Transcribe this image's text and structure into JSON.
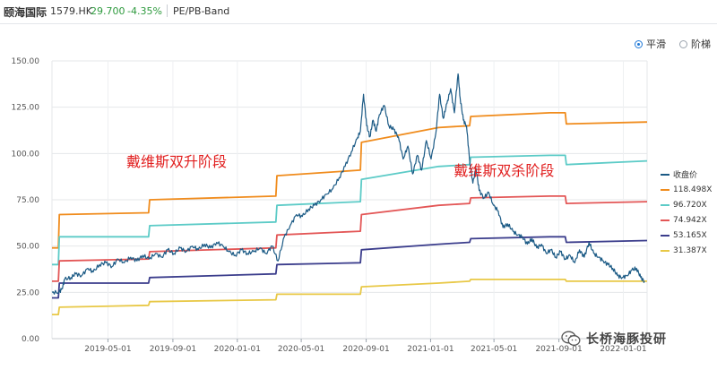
{
  "header": {
    "stock_name": "颐海国际",
    "stock_code": "1579.HK",
    "price": "29.700",
    "change": "-4.35%",
    "tab": "PE/PB-Band",
    "options": [
      {
        "label": "平滑",
        "selected": true
      },
      {
        "label": "阶梯",
        "selected": false
      }
    ]
  },
  "colors": {
    "price": "#1b5a85",
    "band1": "#f08c1d",
    "band2": "#5ccbc7",
    "band3": "#e35656",
    "band4": "#3b3d8c",
    "band5": "#e8c846",
    "annotation": "#e11f1f",
    "positive": "#2e9a3e"
  },
  "watermark": {
    "icon": "wechat-icon",
    "text": "长桥海豚投研"
  },
  "chart_data": {
    "type": "line",
    "title": "",
    "xlabel": "",
    "ylabel": "",
    "ylim": [
      0,
      150
    ],
    "y_ticks": [
      "0.00",
      "25.00",
      "50.00",
      "75.00",
      "100.00",
      "125.00",
      "150.00"
    ],
    "x_range": [
      "2019-01-15",
      "2022-02-15"
    ],
    "x_ticks": [
      "2019-05-01",
      "2019-09-01",
      "2020-01-01",
      "2020-05-01",
      "2020-09-01",
      "2021-01-01",
      "2021-05-01",
      "2021-09-01",
      "2022-01-01"
    ],
    "grid": true,
    "legend_position": "right",
    "annotations": [
      {
        "text": "戴维斯双升阶段",
        "x": "2019-09-08",
        "y": 93
      },
      {
        "text": "戴维斯双杀阶段",
        "x": "2021-05-20",
        "y": 88
      }
    ],
    "series": [
      {
        "name": "收盘价",
        "color_key": "price",
        "smooth": false,
        "points": [
          [
            "2019-01-15",
            25
          ],
          [
            "2019-01-28",
            25
          ],
          [
            "2019-02-03",
            27
          ],
          [
            "2019-02-08",
            32
          ],
          [
            "2019-02-20",
            33
          ],
          [
            "2019-03-01",
            35
          ],
          [
            "2019-03-12",
            34
          ],
          [
            "2019-03-24",
            38
          ],
          [
            "2019-04-03",
            36
          ],
          [
            "2019-04-15",
            40
          ],
          [
            "2019-04-27",
            41
          ],
          [
            "2019-05-09",
            39
          ],
          [
            "2019-05-20",
            43
          ],
          [
            "2019-06-01",
            41
          ],
          [
            "2019-06-13",
            44
          ],
          [
            "2019-06-25",
            42
          ],
          [
            "2019-07-06",
            45
          ],
          [
            "2019-07-18",
            43
          ],
          [
            "2019-07-30",
            46
          ],
          [
            "2019-08-11",
            44
          ],
          [
            "2019-08-22",
            48
          ],
          [
            "2019-09-03",
            46
          ],
          [
            "2019-09-15",
            49
          ],
          [
            "2019-09-26",
            47
          ],
          [
            "2019-10-08",
            50
          ],
          [
            "2019-10-19",
            48
          ],
          [
            "2019-10-31",
            51
          ],
          [
            "2019-11-11",
            49
          ],
          [
            "2019-11-23",
            52
          ],
          [
            "2019-12-05",
            50
          ],
          [
            "2019-12-16",
            47
          ],
          [
            "2019-12-28",
            45
          ],
          [
            "2020-01-09",
            48
          ],
          [
            "2020-01-20",
            46
          ],
          [
            "2020-02-01",
            47
          ],
          [
            "2020-02-13",
            49
          ],
          [
            "2020-02-24",
            46
          ],
          [
            "2020-03-07",
            50
          ],
          [
            "2020-03-18",
            42
          ],
          [
            "2020-03-30",
            55
          ],
          [
            "2020-04-10",
            61
          ],
          [
            "2020-04-22",
            67
          ],
          [
            "2020-05-03",
            66
          ],
          [
            "2020-05-15",
            70
          ],
          [
            "2020-05-26",
            72
          ],
          [
            "2020-06-07",
            75
          ],
          [
            "2020-06-18",
            78
          ],
          [
            "2020-06-30",
            81
          ],
          [
            "2020-07-12",
            87
          ],
          [
            "2020-07-23",
            93
          ],
          [
            "2020-08-04",
            101
          ],
          [
            "2020-08-15",
            108
          ],
          [
            "2020-08-21",
            112
          ],
          [
            "2020-08-27",
            132
          ],
          [
            "2020-09-02",
            115
          ],
          [
            "2020-09-08",
            109
          ],
          [
            "2020-09-14",
            118
          ],
          [
            "2020-09-20",
            112
          ],
          [
            "2020-09-26",
            121
          ],
          [
            "2020-10-05",
            126
          ],
          [
            "2020-10-14",
            115
          ],
          [
            "2020-10-23",
            113
          ],
          [
            "2020-11-01",
            109
          ],
          [
            "2020-11-10",
            97
          ],
          [
            "2020-11-19",
            104
          ],
          [
            "2020-11-28",
            89
          ],
          [
            "2020-12-07",
            99
          ],
          [
            "2020-12-15",
            91
          ],
          [
            "2020-12-24",
            107
          ],
          [
            "2021-01-02",
            97
          ],
          [
            "2021-01-11",
            111
          ],
          [
            "2021-01-18",
            132
          ],
          [
            "2021-01-25",
            119
          ],
          [
            "2021-02-01",
            127
          ],
          [
            "2021-02-08",
            135
          ],
          [
            "2021-02-15",
            122
          ],
          [
            "2021-02-22",
            143
          ],
          [
            "2021-02-26",
            130
          ],
          [
            "2021-03-04",
            118
          ],
          [
            "2021-03-10",
            115
          ],
          [
            "2021-03-16",
            96
          ],
          [
            "2021-03-22",
            84
          ],
          [
            "2021-03-28",
            92
          ],
          [
            "2021-04-03",
            80
          ],
          [
            "2021-04-12",
            76
          ],
          [
            "2021-04-21",
            79
          ],
          [
            "2021-04-30",
            72
          ],
          [
            "2021-05-09",
            69
          ],
          [
            "2021-05-18",
            60
          ],
          [
            "2021-05-27",
            62
          ],
          [
            "2021-06-06",
            58
          ],
          [
            "2021-06-15",
            56
          ],
          [
            "2021-06-24",
            55
          ],
          [
            "2021-07-03",
            51
          ],
          [
            "2021-07-12",
            54
          ],
          [
            "2021-07-21",
            49
          ],
          [
            "2021-07-30",
            51
          ],
          [
            "2021-08-08",
            46
          ],
          [
            "2021-08-17",
            48
          ],
          [
            "2021-08-26",
            44
          ],
          [
            "2021-09-04",
            47
          ],
          [
            "2021-09-13",
            43
          ],
          [
            "2021-09-22",
            45
          ],
          [
            "2021-10-01",
            41
          ],
          [
            "2021-10-10",
            48
          ],
          [
            "2021-10-19",
            44
          ],
          [
            "2021-10-28",
            52
          ],
          [
            "2021-11-06",
            46
          ],
          [
            "2021-11-15",
            44
          ],
          [
            "2021-11-24",
            42
          ],
          [
            "2021-12-03",
            40
          ],
          [
            "2021-12-12",
            38
          ],
          [
            "2021-12-21",
            34
          ],
          [
            "2021-12-30",
            33
          ],
          [
            "2022-01-08",
            34
          ],
          [
            "2022-01-17",
            37
          ],
          [
            "2022-01-26",
            38
          ],
          [
            "2022-02-03",
            33
          ],
          [
            "2022-02-10",
            31
          ]
        ]
      },
      {
        "name": "118.498X",
        "color_key": "band1",
        "smooth": true,
        "points": [
          [
            "2019-01-15",
            49
          ],
          [
            "2019-01-27",
            49
          ],
          [
            "2019-01-29",
            67
          ],
          [
            "2019-07-17",
            68
          ],
          [
            "2019-07-19",
            75
          ],
          [
            "2020-03-14",
            77
          ],
          [
            "2020-03-16",
            88
          ],
          [
            "2020-08-21",
            91
          ],
          [
            "2020-08-23",
            106
          ],
          [
            "2021-01-16",
            114
          ],
          [
            "2021-03-16",
            115
          ],
          [
            "2021-03-18",
            120
          ],
          [
            "2021-08-15",
            122
          ],
          [
            "2021-09-13",
            122
          ],
          [
            "2021-09-15",
            116
          ],
          [
            "2022-02-15",
            117
          ]
        ]
      },
      {
        "name": "96.720X",
        "color_key": "band2",
        "smooth": true,
        "points": [
          [
            "2019-01-15",
            40
          ],
          [
            "2019-01-27",
            40
          ],
          [
            "2019-01-29",
            55
          ],
          [
            "2019-07-17",
            55
          ],
          [
            "2019-07-19",
            61
          ],
          [
            "2020-03-14",
            63
          ],
          [
            "2020-03-16",
            72
          ],
          [
            "2020-08-21",
            74
          ],
          [
            "2020-08-23",
            86
          ],
          [
            "2021-01-16",
            93
          ],
          [
            "2021-03-16",
            94
          ],
          [
            "2021-03-18",
            98
          ],
          [
            "2021-08-15",
            99
          ],
          [
            "2021-09-13",
            99
          ],
          [
            "2021-09-15",
            94
          ],
          [
            "2022-02-15",
            96
          ]
        ]
      },
      {
        "name": "74.942X",
        "color_key": "band3",
        "smooth": true,
        "points": [
          [
            "2019-01-15",
            31
          ],
          [
            "2019-01-27",
            31
          ],
          [
            "2019-01-29",
            42
          ],
          [
            "2019-07-17",
            43
          ],
          [
            "2019-07-19",
            47
          ],
          [
            "2020-03-14",
            49
          ],
          [
            "2020-03-16",
            56
          ],
          [
            "2020-08-21",
            58
          ],
          [
            "2020-08-23",
            67
          ],
          [
            "2021-01-16",
            72
          ],
          [
            "2021-03-16",
            73
          ],
          [
            "2021-03-18",
            76
          ],
          [
            "2021-08-15",
            77
          ],
          [
            "2021-09-13",
            77
          ],
          [
            "2021-09-15",
            73
          ],
          [
            "2022-02-15",
            74
          ]
        ]
      },
      {
        "name": "53.165X",
        "color_key": "band4",
        "smooth": true,
        "points": [
          [
            "2019-01-15",
            22
          ],
          [
            "2019-01-27",
            22
          ],
          [
            "2019-01-29",
            30
          ],
          [
            "2019-07-17",
            30
          ],
          [
            "2019-07-19",
            33
          ],
          [
            "2020-03-14",
            35
          ],
          [
            "2020-03-16",
            40
          ],
          [
            "2020-08-21",
            41
          ],
          [
            "2020-08-23",
            48
          ],
          [
            "2021-01-16",
            51
          ],
          [
            "2021-03-16",
            52
          ],
          [
            "2021-03-18",
            54
          ],
          [
            "2021-08-15",
            55
          ],
          [
            "2021-09-13",
            55
          ],
          [
            "2021-09-15",
            52
          ],
          [
            "2022-02-15",
            53
          ]
        ]
      },
      {
        "name": "31.387X",
        "color_key": "band5",
        "smooth": true,
        "points": [
          [
            "2019-01-15",
            13
          ],
          [
            "2019-01-27",
            13
          ],
          [
            "2019-01-29",
            17
          ],
          [
            "2019-07-17",
            18
          ],
          [
            "2019-07-19",
            20
          ],
          [
            "2020-03-14",
            21
          ],
          [
            "2020-03-16",
            24
          ],
          [
            "2020-08-21",
            24
          ],
          [
            "2020-08-23",
            28
          ],
          [
            "2021-01-16",
            30
          ],
          [
            "2021-03-16",
            31
          ],
          [
            "2021-03-18",
            32
          ],
          [
            "2021-08-15",
            32
          ],
          [
            "2021-09-13",
            32
          ],
          [
            "2021-09-15",
            31
          ],
          [
            "2022-02-15",
            31
          ]
        ]
      }
    ]
  }
}
